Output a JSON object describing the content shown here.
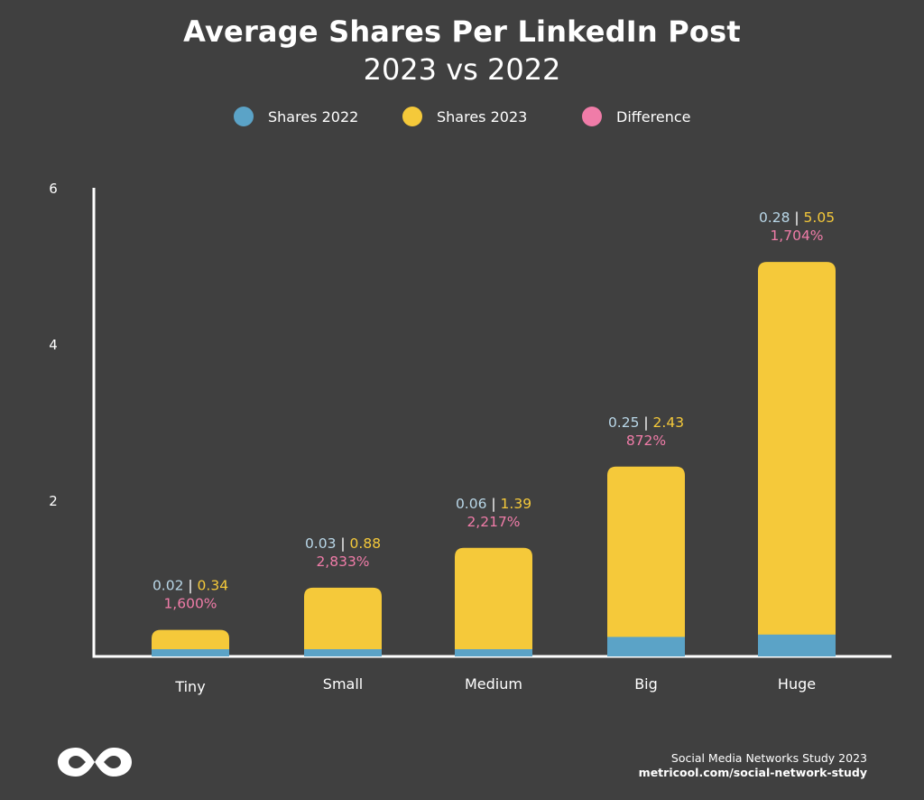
{
  "chart_data": {
    "type": "bar",
    "title": "Average Shares Per LinkedIn Post",
    "subtitle": "2023 vs 2022",
    "categories": [
      "Tiny",
      "Small",
      "Medium",
      "Big",
      "Huge"
    ],
    "series": [
      {
        "name": "Shares 2022",
        "values": [
          0.02,
          0.03,
          0.06,
          0.25,
          0.28
        ],
        "color": "#5ba3c7"
      },
      {
        "name": "Shares 2023",
        "values": [
          0.34,
          0.88,
          1.39,
          2.43,
          5.05
        ],
        "color": "#f5c93a"
      },
      {
        "name": "Difference",
        "values": [
          "1,600%",
          "2,833%",
          "2,217%",
          "872%",
          "1,704%"
        ],
        "color": "#f07ca8"
      }
    ],
    "data_labels": [
      {
        "v2022": "0.02",
        "v2023": "0.34",
        "diff": "1,600%"
      },
      {
        "v2022": "0.03",
        "v2023": "0.88",
        "diff": "2,833%"
      },
      {
        "v2022": "0.06",
        "v2023": "1.39",
        "diff": "2,217%"
      },
      {
        "v2022": "0.25",
        "v2023": "2.43",
        "diff": "872%"
      },
      {
        "v2022": "0.28",
        "v2023": "5.05",
        "diff": "1,704%"
      }
    ],
    "separator": "|",
    "yticks": [
      2,
      4,
      6
    ],
    "ylim": [
      0,
      6
    ],
    "xlabel": "",
    "ylabel": "",
    "legend_position": "top-center",
    "grid": false
  },
  "colors": {
    "background": "#404040",
    "axis": "#ffffff",
    "shares_2022": "#5ba3c7",
    "shares_2023": "#f5c93a",
    "difference": "#f07ca8",
    "label_2022": "#b9d7e8"
  },
  "footer": {
    "study": "Social Media Networks Study 2023",
    "url": "metricool.com/social-network-study"
  },
  "logo": {
    "icon": "metricool-infinity-logo"
  }
}
